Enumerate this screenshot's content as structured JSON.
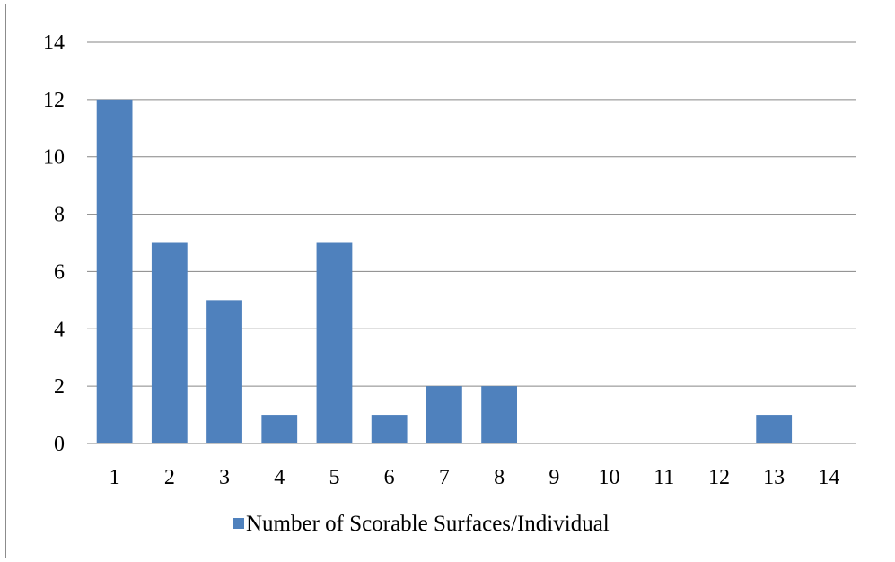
{
  "chart_data": {
    "type": "bar",
    "categories": [
      "1",
      "2",
      "3",
      "4",
      "5",
      "6",
      "7",
      "8",
      "9",
      "10",
      "11",
      "12",
      "13",
      "14"
    ],
    "series": [
      {
        "name": "Number of Scorable Surfaces/Individual",
        "values": [
          12,
          7,
          5,
          1,
          7,
          1,
          2,
          2,
          0,
          0,
          0,
          0,
          1,
          0
        ],
        "color": "#4F81BD"
      }
    ],
    "yticks": [
      "0",
      "2",
      "4",
      "6",
      "8",
      "10",
      "12",
      "14"
    ],
    "ylim": [
      0,
      14
    ],
    "grid": true,
    "gridline_color": "#868686",
    "legend_position": "bottom",
    "title": "",
    "xlabel": "",
    "ylabel": ""
  }
}
